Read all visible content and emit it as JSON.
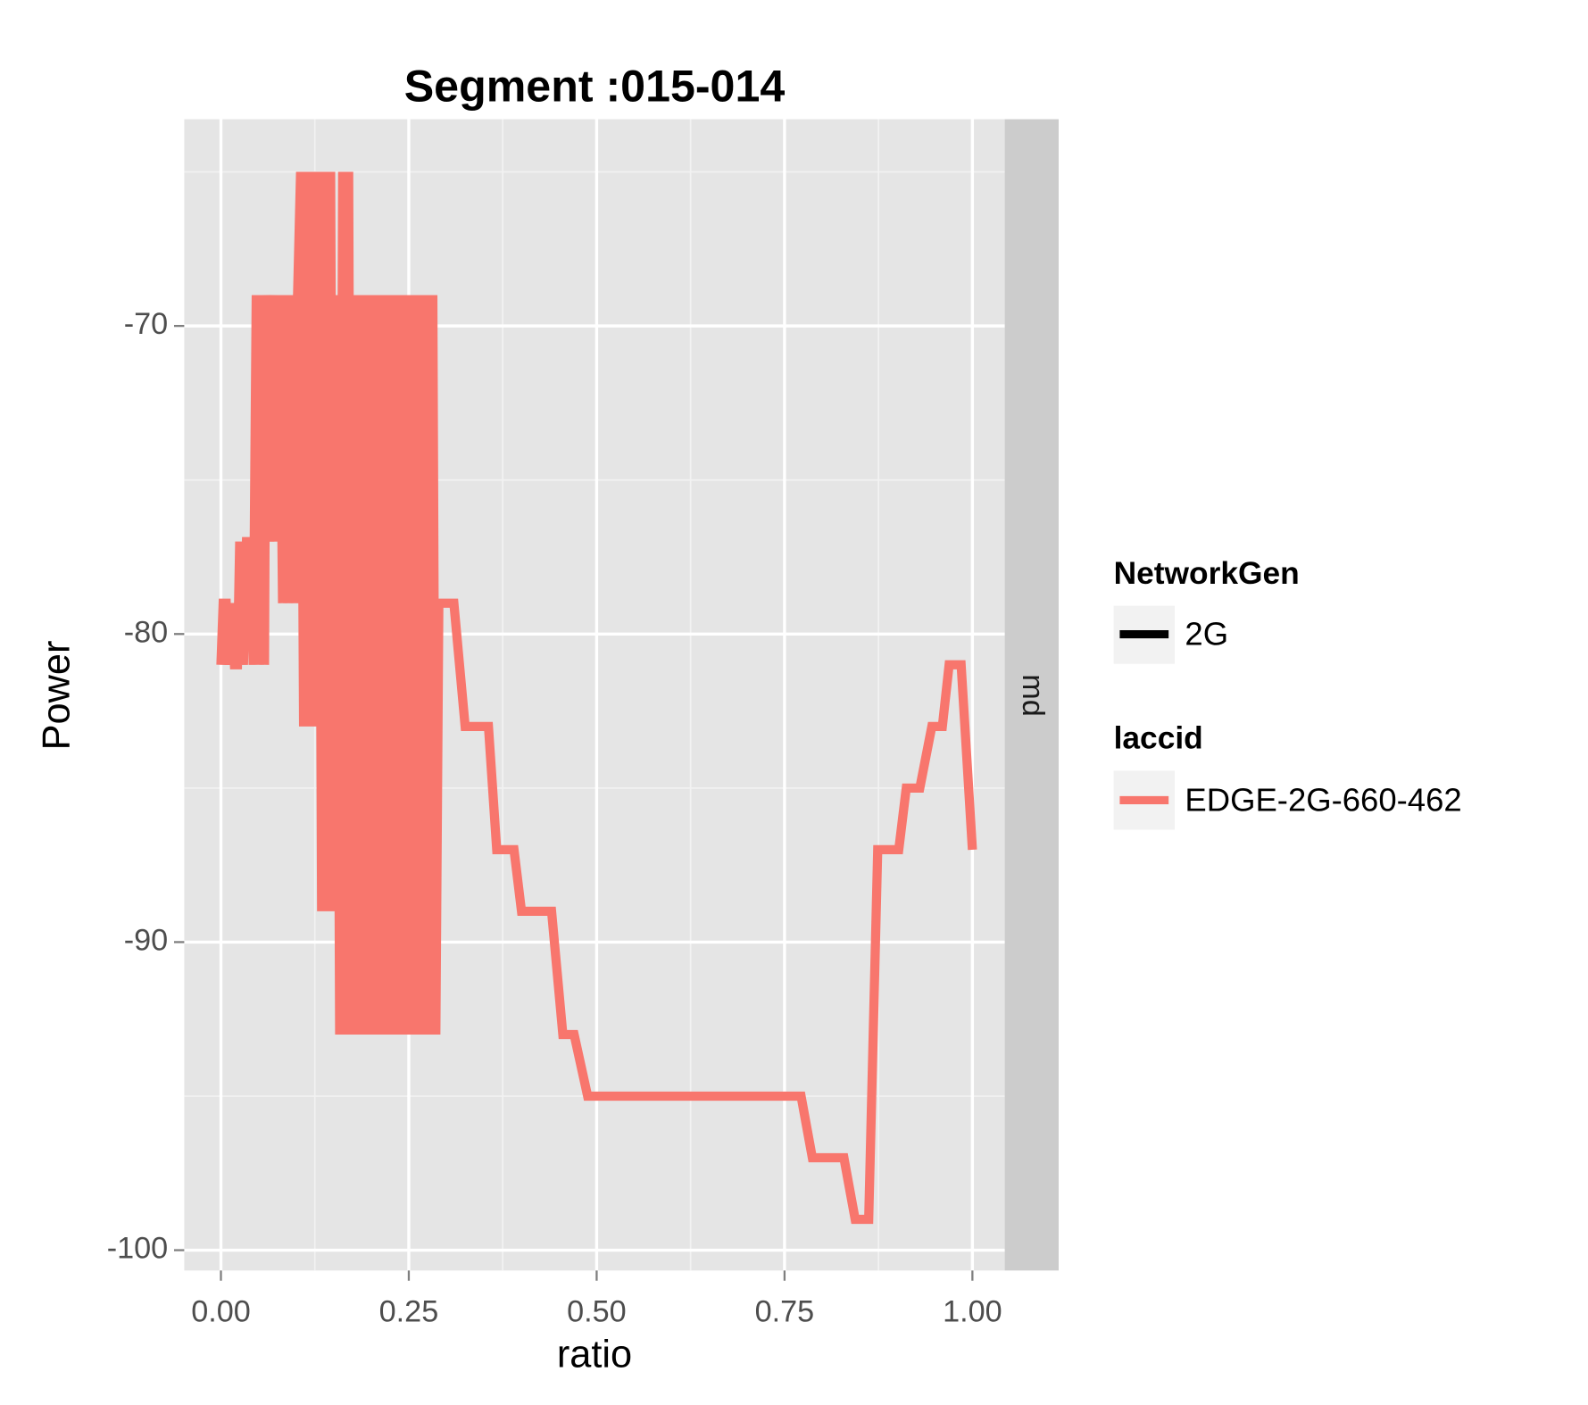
{
  "chart_data": {
    "type": "line",
    "title": "Segment :015-014",
    "x_label": "ratio",
    "y_label": "Power",
    "facet_label": "md",
    "x": [
      0,
      0.003,
      0.007,
      0.01,
      0.014,
      0.018,
      0.022,
      0.025,
      0.03,
      0.034,
      0.04,
      0.043,
      0.047,
      0.05,
      0.054,
      0.058,
      0.06,
      0.065,
      0.07,
      0.074,
      0.078,
      0.082,
      0.086,
      0.09,
      0.094,
      0.098,
      0.102,
      0.106,
      0.11,
      0.114,
      0.118,
      0.122,
      0.126,
      0.13,
      0.134,
      0.138,
      0.142,
      0.146,
      0.15,
      0.154,
      0.158,
      0.162,
      0.166,
      0.17,
      0.174,
      0.178,
      0.182,
      0.186,
      0.19,
      0.194,
      0.198,
      0.202,
      0.206,
      0.21,
      0.214,
      0.218,
      0.222,
      0.226,
      0.23,
      0.234,
      0.238,
      0.242,
      0.246,
      0.25,
      0.254,
      0.258,
      0.262,
      0.266,
      0.27,
      0.274,
      0.278,
      0.282,
      0.286,
      0.29,
      0.31,
      0.325,
      0.356,
      0.367,
      0.39,
      0.4,
      0.44,
      0.455,
      0.47,
      0.488,
      0.772,
      0.787,
      0.829,
      0.844,
      0.862,
      0.874,
      0.902,
      0.912,
      0.93,
      0.946,
      0.96,
      0.969,
      0.985,
      1.0
    ],
    "series": [
      {
        "name": "EDGE-2G-660-462",
        "color": "#f8766d",
        "values": [
          -81,
          -79,
          -79,
          -81,
          -79,
          -81,
          -81,
          -77,
          -81,
          -77,
          -77,
          -81,
          -69,
          -81,
          -69,
          -81,
          -69,
          -77,
          -69,
          -77,
          -69,
          -79,
          -69,
          -79,
          -69,
          -79,
          -69,
          -65,
          -83,
          -65,
          -83,
          -65,
          -83,
          -65,
          -89,
          -65,
          -89,
          -65,
          -89,
          -69,
          -93,
          -65,
          -93,
          -65,
          -93,
          -69,
          -93,
          -69,
          -93,
          -69,
          -93,
          -69,
          -93,
          -69,
          -93,
          -69,
          -93,
          -69,
          -93,
          -69,
          -93,
          -69,
          -93,
          -69,
          -93,
          -69,
          -93,
          -69,
          -93,
          -69,
          -93,
          -69,
          -93,
          -79,
          -79,
          -83,
          -83,
          -87,
          -87,
          -89,
          -89,
          -93,
          -93,
          -95,
          -95,
          -97,
          -97,
          -99,
          -99,
          -87,
          -87,
          -85,
          -85,
          -83,
          -83,
          -81,
          -81,
          -87
        ]
      }
    ],
    "xlim": [
      -0.0488,
      1.043
    ],
    "ylim": [
      -100.66,
      -63.29
    ],
    "xticks": [
      {
        "value": 0,
        "label": "0.00"
      },
      0.25,
      {
        "value": 0.5,
        "label": "0.50"
      },
      0.75,
      {
        "value": 1,
        "label": "1.00"
      }
    ],
    "yticks": [
      -70,
      -80,
      -90,
      -100
    ],
    "grid": true,
    "legends": [
      {
        "title": "NetworkGen",
        "label": "2G",
        "color": "#000000"
      },
      {
        "title": "laccid"
      }
    ]
  }
}
